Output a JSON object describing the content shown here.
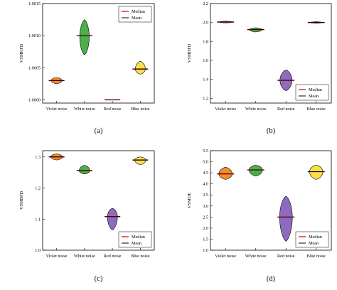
{
  "colors": {
    "median": "#e41a1c",
    "mean": "#000000"
  },
  "chart_data": [
    {
      "type": "violin",
      "panel_label": "(a)",
      "ylabel": "VSMKFD",
      "ylim": [
        0.99995,
        1.0015
      ],
      "yticks": [
        1.0,
        1.0005,
        1.001,
        1.0015
      ],
      "ytick_labels": [
        "1.0000",
        "1.0005",
        "1.0010",
        "1.0015"
      ],
      "categories": [
        "Violet noise",
        "White noise",
        "Red noise",
        "Blue noise"
      ],
      "legend": [
        "Median",
        "Mean"
      ],
      "legend_pos": "top-right",
      "violins": [
        {
          "category": "Violet noise",
          "color": "#f28e2b",
          "min": 1.00025,
          "max": 1.00035,
          "median": 1.0003,
          "mean": 1.0003,
          "peak": 1.0003,
          "width": 0.38
        },
        {
          "category": "White noise",
          "color": "#4daf4a",
          "min": 1.0007,
          "max": 1.00125,
          "median": 1.001,
          "mean": 1.001,
          "peak": 1.00098,
          "width": 0.34
        },
        {
          "category": "Red noise",
          "color": "#8e6bbf",
          "min": 1.0,
          "max": 1.0,
          "median": 1.0,
          "mean": 1.0,
          "peak": 1.0,
          "width": 0.0
        },
        {
          "category": "Blue noise",
          "color": "#f2e34b",
          "min": 1.0004,
          "max": 1.0006,
          "median": 1.00048,
          "mean": 1.00048,
          "peak": 1.00048,
          "width": 0.36
        }
      ]
    },
    {
      "type": "violin",
      "panel_label": "(b)",
      "ylabel": "VSMHFD",
      "ylim": [
        1.15,
        2.2
      ],
      "yticks": [
        1.2,
        1.4,
        1.6,
        1.8,
        2.0,
        2.2
      ],
      "ytick_labels": [
        "1.2",
        "1.4",
        "1.6",
        "1.8",
        "2.0",
        "2.2"
      ],
      "categories": [
        "Violet noise",
        "White noise",
        "Red noise",
        "Blue noise"
      ],
      "legend": [
        "Median",
        "Mean"
      ],
      "legend_pos": "bottom-right",
      "violins": [
        {
          "category": "Violet noise",
          "color": "#f28e2b",
          "min": 1.996,
          "max": 2.014,
          "median": 2.005,
          "mean": 2.005,
          "peak": 2.005,
          "width": 0.42
        },
        {
          "category": "White noise",
          "color": "#4daf4a",
          "min": 1.9,
          "max": 1.945,
          "median": 1.925,
          "mean": 1.925,
          "peak": 1.925,
          "width": 0.42
        },
        {
          "category": "Red noise",
          "color": "#8e6bbf",
          "min": 1.28,
          "max": 1.5,
          "median": 1.39,
          "mean": 1.39,
          "peak": 1.39,
          "width": 0.4
        },
        {
          "category": "Blue noise",
          "color": "#f2e34b",
          "min": 1.992,
          "max": 2.008,
          "median": 2.0,
          "mean": 2.0,
          "peak": 2.0,
          "width": 0.42
        }
      ]
    },
    {
      "type": "violin",
      "panel_label": "(c)",
      "ylabel": "VSMBFD",
      "ylim": [
        1.0,
        1.32
      ],
      "yticks": [
        1.0,
        1.1,
        1.2,
        1.3
      ],
      "ytick_labels": [
        "1.0",
        "1.1",
        "1.2",
        "1.3"
      ],
      "categories": [
        "Violet noise",
        "White noise",
        "Red noise",
        "Blue noise"
      ],
      "legend": [
        "Median",
        "Mean"
      ],
      "legend_pos": "bottom-right",
      "violins": [
        {
          "category": "Violet noise",
          "color": "#f28e2b",
          "min": 1.29,
          "max": 1.31,
          "median": 1.3,
          "mean": 1.3,
          "peak": 1.3,
          "width": 0.42
        },
        {
          "category": "White noise",
          "color": "#4daf4a",
          "min": 1.245,
          "max": 1.273,
          "median": 1.256,
          "mean": 1.256,
          "peak": 1.256,
          "width": 0.38
        },
        {
          "category": "Red noise",
          "color": "#8e6bbf",
          "min": 1.065,
          "max": 1.135,
          "median": 1.108,
          "mean": 1.108,
          "peak": 1.108,
          "width": 0.36
        },
        {
          "category": "Blue noise",
          "color": "#f2e34b",
          "min": 1.275,
          "max": 1.3,
          "median": 1.29,
          "mean": 1.29,
          "peak": 1.29,
          "width": 0.4
        }
      ]
    },
    {
      "type": "violin",
      "panel_label": "(d)",
      "ylabel": "VSMDE",
      "ylim": [
        1.0,
        5.5
      ],
      "yticks": [
        1.0,
        1.5,
        2.0,
        2.5,
        3.0,
        3.5,
        4.0,
        4.5,
        5.0,
        5.5
      ],
      "ytick_labels": [
        "1.0",
        "1.5",
        "2.0",
        "2.5",
        "3.0",
        "3.5",
        "4.0",
        "4.5",
        "5.0",
        "5.5"
      ],
      "categories": [
        "Violet noise",
        "White noise",
        "Red noise",
        "Blue noise"
      ],
      "legend": [
        "Median",
        "Mean"
      ],
      "legend_pos": "bottom-right",
      "violins": [
        {
          "category": "Violet noise",
          "color": "#f28e2b",
          "min": 4.2,
          "max": 4.75,
          "median": 4.45,
          "mean": 4.45,
          "peak": 4.45,
          "width": 0.44
        },
        {
          "category": "White noise",
          "color": "#4daf4a",
          "min": 4.35,
          "max": 4.85,
          "median": 4.63,
          "mean": 4.63,
          "peak": 4.63,
          "width": 0.44
        },
        {
          "category": "Red noise",
          "color": "#8e6bbf",
          "min": 1.4,
          "max": 3.45,
          "median": 2.5,
          "mean": 2.5,
          "peak": 2.5,
          "width": 0.42
        },
        {
          "category": "Blue noise",
          "color": "#f2e34b",
          "min": 4.2,
          "max": 4.85,
          "median": 4.55,
          "mean": 4.55,
          "peak": 4.55,
          "width": 0.44
        }
      ]
    }
  ]
}
